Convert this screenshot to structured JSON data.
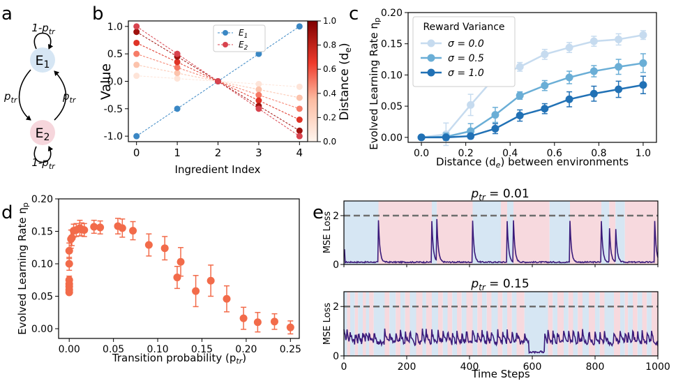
{
  "panel_labels": {
    "a": "a",
    "b": "b",
    "c": "c",
    "d": "d",
    "e": "e"
  },
  "diagram": {
    "state1": "E",
    "state1_sub": "1",
    "state2": "E",
    "state2_sub": "2",
    "stay_top": "1-p",
    "stay_bottom": "1-p",
    "switch_left": "p",
    "switch_right": "p",
    "prob_sub": "tr",
    "colors": {
      "state1": "#d6e6f4",
      "state2": "#f6d6dc"
    }
  },
  "chart_data": [
    {
      "id": "b",
      "type": "line",
      "xlabel": "Ingredient Index",
      "ylabel": "Value",
      "x": [
        0,
        1,
        2,
        3,
        4
      ],
      "xticks": [
        "0",
        "1",
        "2",
        "3",
        "4"
      ],
      "yticks": [
        "-1.0",
        "-0.5",
        "0.0",
        "0.5",
        "1.0"
      ],
      "xlim": [
        -0.2,
        4.2
      ],
      "ylim": [
        -1.1,
        1.1
      ],
      "legend": [
        {
          "label": "E",
          "sub": "1",
          "color": "#3a87c4"
        },
        {
          "label": "E",
          "sub": "2",
          "color": "#d8434e"
        }
      ],
      "e1": [
        -1.0,
        -0.5,
        0.0,
        0.5,
        1.0
      ],
      "e2": [
        1.0,
        0.5,
        0.0,
        -0.5,
        -1.0
      ],
      "distances": [
        0.1,
        0.3,
        0.5,
        0.7,
        0.9
      ],
      "colorbar": {
        "label": "Distance (d",
        "label_sub": "e",
        "label_end": ")",
        "range": [
          0.0,
          1.0
        ],
        "ticks": [
          "0.0",
          "0.2",
          "0.4",
          "0.6",
          "0.8",
          "1.0"
        ],
        "color_low": "#fff5ee",
        "color_high": "#7f0000"
      }
    },
    {
      "id": "c",
      "type": "line",
      "xlabel": "Distance (d",
      "xlabel_sub": "e",
      "xlabel_end": ") between environments",
      "ylabel": "Evolved Learning Rate η",
      "ylabel_sub": "p",
      "xlim": [
        -0.06,
        1.06
      ],
      "ylim": [
        -0.008,
        0.2
      ],
      "xticks": [
        "0.0",
        "0.2",
        "0.4",
        "0.6",
        "0.8",
        "1.0"
      ],
      "yticks": [
        "0.00",
        "0.05",
        "0.10",
        "0.15",
        "0.20"
      ],
      "legend_title": "Reward Variance",
      "x": [
        0.0,
        0.111,
        0.222,
        0.333,
        0.444,
        0.556,
        0.667,
        0.778,
        0.889,
        1.0
      ],
      "series": [
        {
          "name": "σ = 0.0",
          "color": "#c6dbef",
          "values": [
            0.0,
            0.005,
            0.052,
            0.097,
            0.113,
            0.133,
            0.144,
            0.154,
            0.157,
            0.164
          ],
          "err": [
            0.002,
            0.018,
            0.017,
            0.012,
            0.007,
            0.008,
            0.008,
            0.008,
            0.009,
            0.007
          ]
        },
        {
          "name": "σ = 0.5",
          "color": "#6aaed6",
          "values": [
            0.0,
            0.001,
            0.01,
            0.036,
            0.067,
            0.083,
            0.096,
            0.106,
            0.113,
            0.119
          ],
          "err": [
            0.002,
            0.006,
            0.012,
            0.012,
            0.006,
            0.008,
            0.01,
            0.009,
            0.012,
            0.015
          ]
        },
        {
          "name": "σ = 1.0",
          "color": "#2171b5",
          "values": [
            0.0,
            0.0,
            0.002,
            0.014,
            0.035,
            0.046,
            0.061,
            0.07,
            0.077,
            0.084
          ],
          "err": [
            0.002,
            0.002,
            0.004,
            0.008,
            0.009,
            0.008,
            0.012,
            0.012,
            0.013,
            0.014
          ]
        }
      ]
    },
    {
      "id": "d",
      "type": "scatter",
      "xlabel": "Transition probability (p",
      "xlabel_sub": "tr",
      "xlabel_end": ")",
      "ylabel": "Evolved Learning Rate η",
      "ylabel_sub": "p",
      "xlim": [
        -0.012,
        0.26
      ],
      "ylim": [
        -0.015,
        0.2
      ],
      "xticks": [
        "0.00",
        "0.05",
        "0.10",
        "0.15",
        "0.20",
        "0.25"
      ],
      "yticks": [
        "0.00",
        "0.05",
        "0.10",
        "0.15",
        "0.20"
      ],
      "color": "#f26b4a",
      "x": [
        0.0,
        0.0,
        0.0,
        0.0,
        0.0,
        0.0,
        0.0,
        0.002,
        0.003,
        0.005,
        0.008,
        0.012,
        0.014,
        0.017,
        0.028,
        0.035,
        0.055,
        0.06,
        0.072,
        0.09,
        0.108,
        0.122,
        0.126,
        0.143,
        0.16,
        0.178,
        0.197,
        0.213,
        0.232,
        0.25
      ],
      "values": [
        0.056,
        0.06,
        0.065,
        0.069,
        0.075,
        0.1,
        0.12,
        0.138,
        0.14,
        0.151,
        0.152,
        0.155,
        0.153,
        0.152,
        0.157,
        0.156,
        0.158,
        0.155,
        0.151,
        0.129,
        0.124,
        0.079,
        0.103,
        0.058,
        0.074,
        0.046,
        0.016,
        0.01,
        0.011,
        0.002
      ],
      "err": [
        0.003,
        0.004,
        0.004,
        0.005,
        0.006,
        0.01,
        0.012,
        0.014,
        0.012,
        0.01,
        0.01,
        0.012,
        0.01,
        0.01,
        0.01,
        0.01,
        0.012,
        0.014,
        0.014,
        0.017,
        0.018,
        0.017,
        0.022,
        0.024,
        0.024,
        0.02,
        0.017,
        0.015,
        0.012,
        0.01
      ]
    },
    {
      "id": "e1",
      "type": "line",
      "title": "p",
      "title_sub": "tr",
      "title_rest": " = 0.01",
      "ylabel": "MSE Loss",
      "xlim": [
        0,
        1000
      ],
      "ylim": [
        0,
        2.6
      ],
      "yticks": [
        "0",
        "2"
      ],
      "threshold": 2.0,
      "env_colors": [
        "#d6e6f3",
        "#f7d9de"
      ],
      "env_switches": [
        110,
        280,
        296,
        410,
        500,
        520,
        540,
        655,
        720,
        820,
        845,
        865,
        895
      ],
      "spike_times": [
        110,
        280,
        296,
        410,
        520,
        540,
        720,
        820,
        845,
        865,
        990
      ],
      "baseline": 0.07
    },
    {
      "id": "e2",
      "type": "line",
      "title": "p",
      "title_sub": "tr",
      "title_rest": " = 0.15",
      "xlabel": "Time Steps",
      "ylabel": "MSE Loss",
      "xlim": [
        0,
        1000
      ],
      "ylim": [
        0,
        2.6
      ],
      "xticks": [
        "0",
        "200",
        "400",
        "600",
        "800",
        "1000"
      ],
      "yticks": [
        "0",
        "2"
      ],
      "threshold": 2.0,
      "env_colors": [
        "#d6e6f3",
        "#f7d9de"
      ],
      "env_switches": [
        10,
        20,
        35,
        45,
        60,
        70,
        80,
        95,
        130,
        145,
        165,
        180,
        195,
        210,
        230,
        250,
        262,
        280,
        300,
        315,
        330,
        345,
        360,
        375,
        390,
        410,
        425,
        440,
        455,
        470,
        490,
        505,
        520,
        535,
        550,
        575,
        650,
        665,
        680,
        700,
        715,
        730,
        745,
        760,
        780,
        800,
        815,
        830,
        860,
        880,
        895,
        905,
        920,
        935,
        950,
        965,
        980
      ],
      "baseline": 0.5
    }
  ]
}
